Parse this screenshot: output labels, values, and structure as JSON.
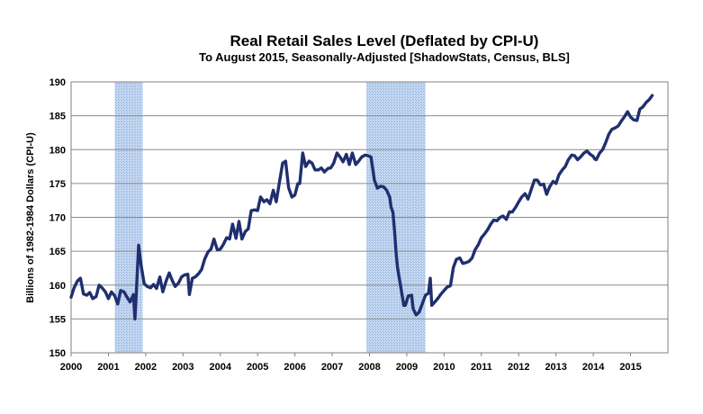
{
  "chart_data": {
    "type": "line",
    "title": "Real Retail Sales Level (Deflated by CPI-U)",
    "subtitle": "To August 2015, Seasonally-Adjusted [ShadowStats, Census, BLS]",
    "ylabel": "Billions of 1982-1984 Dollars  (CPI-U)",
    "xlabel": "",
    "xlim": [
      2000,
      2016
    ],
    "ylim": [
      150,
      190
    ],
    "x_ticks": [
      "2000",
      "2001",
      "2002",
      "2003",
      "2004",
      "2005",
      "2006",
      "2007",
      "2008",
      "2009",
      "2010",
      "2011",
      "2012",
      "2013",
      "2014",
      "2015"
    ],
    "y_ticks": [
      "150",
      "155",
      "160",
      "165",
      "170",
      "175",
      "180",
      "185",
      "190"
    ],
    "grid": "horizontal",
    "line_color": "#1f2f6e",
    "recession_color": "#a9c4e8",
    "recessions": [
      [
        2001.17,
        2001.92
      ],
      [
        2007.92,
        2009.5
      ]
    ],
    "series": [
      {
        "values": [
          [
            2000.0,
            158.2
          ],
          [
            2000.08,
            159.6
          ],
          [
            2000.17,
            160.6
          ],
          [
            2000.25,
            161.0
          ],
          [
            2000.33,
            158.7
          ],
          [
            2000.42,
            158.5
          ],
          [
            2000.5,
            158.9
          ],
          [
            2000.58,
            158.0
          ],
          [
            2000.67,
            158.3
          ],
          [
            2000.75,
            160.0
          ],
          [
            2000.83,
            159.6
          ],
          [
            2000.92,
            159.0
          ],
          [
            2001.0,
            158.0
          ],
          [
            2001.08,
            159.0
          ],
          [
            2001.17,
            158.4
          ],
          [
            2001.25,
            157.2
          ],
          [
            2001.33,
            159.2
          ],
          [
            2001.42,
            159.0
          ],
          [
            2001.5,
            158.2
          ],
          [
            2001.58,
            157.5
          ],
          [
            2001.67,
            158.6
          ],
          [
            2001.71,
            155.0
          ],
          [
            2001.75,
            159.0
          ],
          [
            2001.81,
            165.9
          ],
          [
            2001.88,
            162.8
          ],
          [
            2001.96,
            160.2
          ],
          [
            2002.04,
            159.8
          ],
          [
            2002.13,
            159.6
          ],
          [
            2002.21,
            160.1
          ],
          [
            2002.29,
            159.5
          ],
          [
            2002.38,
            161.2
          ],
          [
            2002.46,
            159.0
          ],
          [
            2002.54,
            160.5
          ],
          [
            2002.63,
            161.8
          ],
          [
            2002.71,
            160.7
          ],
          [
            2002.79,
            159.8
          ],
          [
            2002.88,
            160.3
          ],
          [
            2002.96,
            161.2
          ],
          [
            2003.04,
            161.5
          ],
          [
            2003.13,
            161.6
          ],
          [
            2003.17,
            158.6
          ],
          [
            2003.25,
            161.0
          ],
          [
            2003.33,
            161.2
          ],
          [
            2003.42,
            161.7
          ],
          [
            2003.5,
            162.3
          ],
          [
            2003.58,
            163.8
          ],
          [
            2003.67,
            164.9
          ],
          [
            2003.75,
            165.3
          ],
          [
            2003.83,
            166.8
          ],
          [
            2003.92,
            165.2
          ],
          [
            2004.0,
            165.3
          ],
          [
            2004.08,
            166.0
          ],
          [
            2004.17,
            167.0
          ],
          [
            2004.25,
            166.8
          ],
          [
            2004.33,
            169.0
          ],
          [
            2004.42,
            166.9
          ],
          [
            2004.5,
            169.4
          ],
          [
            2004.58,
            166.8
          ],
          [
            2004.67,
            167.9
          ],
          [
            2004.75,
            168.3
          ],
          [
            2004.83,
            171.0
          ],
          [
            2004.92,
            171.1
          ],
          [
            2005.0,
            171.0
          ],
          [
            2005.08,
            173.0
          ],
          [
            2005.17,
            172.3
          ],
          [
            2005.25,
            172.6
          ],
          [
            2005.33,
            172.0
          ],
          [
            2005.42,
            174.0
          ],
          [
            2005.5,
            172.3
          ],
          [
            2005.58,
            175.0
          ],
          [
            2005.67,
            178.0
          ],
          [
            2005.75,
            178.3
          ],
          [
            2005.83,
            174.4
          ],
          [
            2005.92,
            173.0
          ],
          [
            2006.0,
            173.3
          ],
          [
            2006.08,
            175.0
          ],
          [
            2006.13,
            175.0
          ],
          [
            2006.21,
            179.5
          ],
          [
            2006.29,
            177.5
          ],
          [
            2006.38,
            178.3
          ],
          [
            2006.46,
            178.0
          ],
          [
            2006.54,
            177.0
          ],
          [
            2006.63,
            177.0
          ],
          [
            2006.71,
            177.3
          ],
          [
            2006.79,
            176.7
          ],
          [
            2006.88,
            177.2
          ],
          [
            2006.96,
            177.3
          ],
          [
            2007.04,
            178.0
          ],
          [
            2007.13,
            179.5
          ],
          [
            2007.21,
            178.9
          ],
          [
            2007.29,
            178.2
          ],
          [
            2007.38,
            179.3
          ],
          [
            2007.46,
            177.8
          ],
          [
            2007.54,
            179.5
          ],
          [
            2007.63,
            177.8
          ],
          [
            2007.71,
            178.3
          ],
          [
            2007.79,
            178.9
          ],
          [
            2007.88,
            179.2
          ],
          [
            2007.96,
            179.1
          ],
          [
            2008.04,
            178.9
          ],
          [
            2008.13,
            175.5
          ],
          [
            2008.21,
            174.3
          ],
          [
            2008.29,
            174.6
          ],
          [
            2008.38,
            174.5
          ],
          [
            2008.46,
            174.0
          ],
          [
            2008.54,
            173.0
          ],
          [
            2008.58,
            171.5
          ],
          [
            2008.63,
            170.7
          ],
          [
            2008.67,
            168.0
          ],
          [
            2008.71,
            165.0
          ],
          [
            2008.75,
            162.6
          ],
          [
            2008.83,
            160.0
          ],
          [
            2008.92,
            157.0
          ],
          [
            2008.96,
            157.0
          ],
          [
            2009.04,
            158.4
          ],
          [
            2009.13,
            158.5
          ],
          [
            2009.17,
            156.5
          ],
          [
            2009.25,
            155.6
          ],
          [
            2009.33,
            156.0
          ],
          [
            2009.42,
            157.3
          ],
          [
            2009.5,
            158.5
          ],
          [
            2009.58,
            158.8
          ],
          [
            2009.63,
            161.0
          ],
          [
            2009.67,
            157.0
          ],
          [
            2009.75,
            157.5
          ],
          [
            2009.83,
            158.0
          ],
          [
            2009.92,
            158.7
          ],
          [
            2010.0,
            159.2
          ],
          [
            2010.08,
            159.7
          ],
          [
            2010.17,
            159.9
          ],
          [
            2010.25,
            162.6
          ],
          [
            2010.33,
            163.8
          ],
          [
            2010.42,
            164.0
          ],
          [
            2010.5,
            163.2
          ],
          [
            2010.58,
            163.3
          ],
          [
            2010.67,
            163.5
          ],
          [
            2010.75,
            164.0
          ],
          [
            2010.83,
            165.2
          ],
          [
            2010.92,
            166.0
          ],
          [
            2011.0,
            167.0
          ],
          [
            2011.08,
            167.5
          ],
          [
            2011.17,
            168.2
          ],
          [
            2011.25,
            169.0
          ],
          [
            2011.33,
            169.6
          ],
          [
            2011.42,
            169.5
          ],
          [
            2011.5,
            170.0
          ],
          [
            2011.58,
            170.2
          ],
          [
            2011.67,
            169.7
          ],
          [
            2011.75,
            170.8
          ],
          [
            2011.83,
            170.8
          ],
          [
            2011.92,
            171.5
          ],
          [
            2012.0,
            172.3
          ],
          [
            2012.08,
            173.0
          ],
          [
            2012.17,
            173.5
          ],
          [
            2012.25,
            172.7
          ],
          [
            2012.33,
            174.0
          ],
          [
            2012.42,
            175.5
          ],
          [
            2012.5,
            175.5
          ],
          [
            2012.58,
            174.8
          ],
          [
            2012.67,
            174.9
          ],
          [
            2012.75,
            173.4
          ],
          [
            2012.83,
            174.5
          ],
          [
            2012.92,
            175.3
          ],
          [
            2013.0,
            175.0
          ],
          [
            2013.08,
            176.3
          ],
          [
            2013.17,
            177.0
          ],
          [
            2013.25,
            177.5
          ],
          [
            2013.33,
            178.5
          ],
          [
            2013.42,
            179.2
          ],
          [
            2013.5,
            179.1
          ],
          [
            2013.58,
            178.5
          ],
          [
            2013.67,
            179.0
          ],
          [
            2013.75,
            179.5
          ],
          [
            2013.83,
            179.8
          ],
          [
            2013.92,
            179.3
          ],
          [
            2014.0,
            179.0
          ],
          [
            2014.04,
            178.6
          ],
          [
            2014.08,
            178.5
          ],
          [
            2014.17,
            179.5
          ],
          [
            2014.25,
            180.0
          ],
          [
            2014.33,
            181.0
          ],
          [
            2014.42,
            182.3
          ],
          [
            2014.5,
            183.0
          ],
          [
            2014.58,
            183.2
          ],
          [
            2014.67,
            183.5
          ],
          [
            2014.75,
            184.2
          ],
          [
            2014.83,
            184.8
          ],
          [
            2014.92,
            185.6
          ],
          [
            2015.0,
            184.8
          ],
          [
            2015.08,
            184.4
          ],
          [
            2015.17,
            184.3
          ],
          [
            2015.25,
            186.0
          ],
          [
            2015.33,
            186.3
          ],
          [
            2015.42,
            187.0
          ],
          [
            2015.5,
            187.4
          ],
          [
            2015.58,
            188.0
          ]
        ]
      }
    ]
  }
}
